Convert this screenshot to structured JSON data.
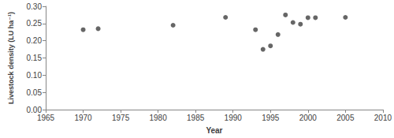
{
  "chart_data": {
    "type": "scatter",
    "x_label": "Year",
    "y_label": "Livestock density (LU ha⁻¹)",
    "x": [
      1970,
      1972,
      1982,
      1989,
      1993,
      1994,
      1995,
      1996,
      1997,
      1998,
      1999,
      2000,
      2001,
      2005
    ],
    "values": [
      0.232,
      0.235,
      0.245,
      0.268,
      0.232,
      0.175,
      0.185,
      0.218,
      0.275,
      0.253,
      0.248,
      0.267,
      0.267,
      0.268
    ],
    "color": "#404040",
    "marker": "circle",
    "xlim": [
      1965,
      2010
    ],
    "xticks": [
      1965,
      1970,
      1975,
      1980,
      1985,
      1990,
      1995,
      2000,
      2005,
      2010
    ],
    "ylim": [
      0,
      0.3
    ],
    "yticks": [
      {
        "value": 0,
        "label": "0.00"
      },
      {
        "value": 0.05,
        "label": "0.05"
      },
      {
        "value": 0.1,
        "label": "0.10"
      },
      {
        "value": 0.15,
        "label": "0.15"
      },
      {
        "value": 0.2,
        "label": "0.20"
      },
      {
        "value": 0.25,
        "label": "0.25"
      },
      {
        "value": 0.3,
        "label": "0.30"
      }
    ],
    "grid": false
  }
}
